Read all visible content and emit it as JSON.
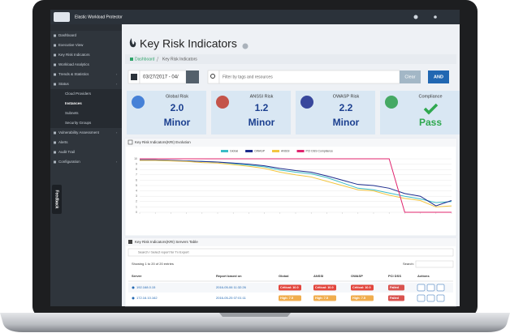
{
  "app_title": "Elastic Workload Protector",
  "sidebar": [
    "Dashboard",
    "Executive View",
    "Key Risk Indicators",
    "Workload Analytics",
    "Trends & Statistics",
    "Status",
    "Cloud Providers",
    "Instances",
    "Subnets",
    "Security Groups",
    "Vulnerability Assessment",
    "Alerts",
    "Audit Trail",
    "Configuration"
  ],
  "feedback": "Feedback",
  "page_title": "Key Risk Indicators",
  "breadcrumb": [
    "Dashboard",
    "Key Risk Indicators"
  ],
  "filters": {
    "date": "03/27/2017 - 04/",
    "search_placeholder": "Filter by tags and resources",
    "clear": "Clear",
    "and": "AND"
  },
  "cards": [
    {
      "label": "Global Risk",
      "value": "2.0",
      "level": "Minor"
    },
    {
      "label": "ANSSI Risk",
      "value": "1.2",
      "level": "Minor"
    },
    {
      "label": "OWASP Risk",
      "value": "2.2",
      "level": "Minor"
    },
    {
      "label": "Compliance",
      "level": "Pass"
    }
  ],
  "chart_data": {
    "type": "line",
    "title": "Key Risk Indicators(KRI) Evolution",
    "categories": [
      null,
      null,
      null,
      null,
      null,
      null,
      null,
      null,
      null,
      null,
      null,
      null,
      null,
      null,
      null,
      null,
      null,
      null,
      null,
      null,
      null
    ],
    "ylim": [
      0,
      10
    ],
    "yticks": [
      0,
      1,
      2,
      3,
      4,
      5,
      6,
      7,
      8,
      9,
      10
    ],
    "grid": true,
    "series": [
      {
        "name": "Global",
        "color": "#3bbcc6",
        "values": [
          9.8,
          9.8,
          9.7,
          9.6,
          9.5,
          9.4,
          9.1,
          8.8,
          8.5,
          7.9,
          7.5,
          7.2,
          6.5,
          5.5,
          4.5,
          4.2,
          3.6,
          3.0,
          2.5,
          1.8,
          2.0
        ]
      },
      {
        "name": "OWASP",
        "color": "#1b2a8c",
        "values": [
          9.8,
          9.8,
          9.7,
          9.6,
          9.5,
          9.4,
          9.2,
          9.0,
          8.7,
          8.2,
          7.8,
          7.5,
          6.8,
          6.0,
          5.2,
          5.0,
          4.5,
          3.5,
          3.0,
          1.2,
          2.2
        ]
      },
      {
        "name": "ANSSI",
        "color": "#f3c640",
        "values": [
          9.7,
          9.7,
          9.6,
          9.5,
          9.3,
          9.2,
          8.9,
          8.6,
          8.2,
          7.5,
          7.0,
          6.6,
          5.8,
          5.0,
          4.2,
          4.0,
          3.2,
          2.6,
          2.2,
          1.0,
          1.2
        ]
      },
      {
        "name": "PCI DSS Compliance",
        "color": "#e0246e",
        "values": [
          10,
          10,
          10,
          10,
          10,
          10,
          10,
          10,
          10,
          10,
          10,
          10,
          10,
          10,
          10,
          10,
          10,
          0,
          0,
          0,
          0
        ]
      }
    ]
  },
  "table": {
    "title": "Key Risk Indicators(KRI) Servers Table",
    "search_placeholder": "Search / Select report for Tx Export",
    "info": "Showing 1 to 20 of 20 entries",
    "search_label": "Search:",
    "columns": [
      "Server",
      "Report based on",
      "Global",
      "ANSSI",
      "OWASP",
      "PCI DSS",
      "Actions"
    ],
    "rows": [
      [
        "192.168.0.15",
        "2016-05-06 11:32:26",
        "Critical: 10.0",
        "Critical: 10.0",
        "Critical: 10.0",
        "Failed"
      ],
      [
        "172.16.10.162",
        "2016-05-25 07:01:11",
        "High: 7.5",
        "High: 7.5",
        "High: 7.5",
        "Failed"
      ]
    ]
  }
}
